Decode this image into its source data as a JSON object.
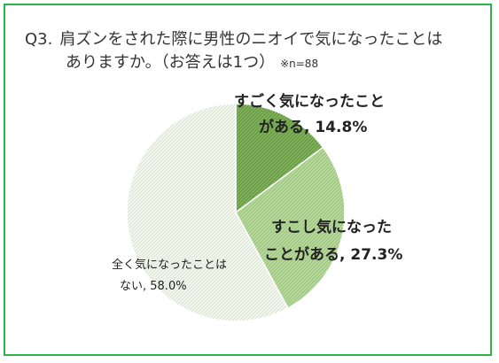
{
  "question": {
    "number": "Q3.",
    "line1": "肩ズンをされた際に男性のニオイで気になったことは",
    "line2": "ありますか。（お答えは1つ）",
    "note": "※n=88"
  },
  "colors": {
    "frame": "#2db34a",
    "slice1": "#7fb05a",
    "slice2": "#b5d89a",
    "slice3": "#edf4e6"
  },
  "chart_data": {
    "type": "pie",
    "title": "",
    "slices": [
      {
        "label_line1": "すごく気になったこと",
        "label_line2": "がある, 14.8%",
        "value": 14.8
      },
      {
        "label_line1": "すこし気になった",
        "label_line2": "ことがある, 27.3%",
        "value": 27.3
      },
      {
        "label_line1": "全く気になったことは",
        "label_line2": "ない, 58.0%",
        "value": 58.0
      }
    ]
  }
}
